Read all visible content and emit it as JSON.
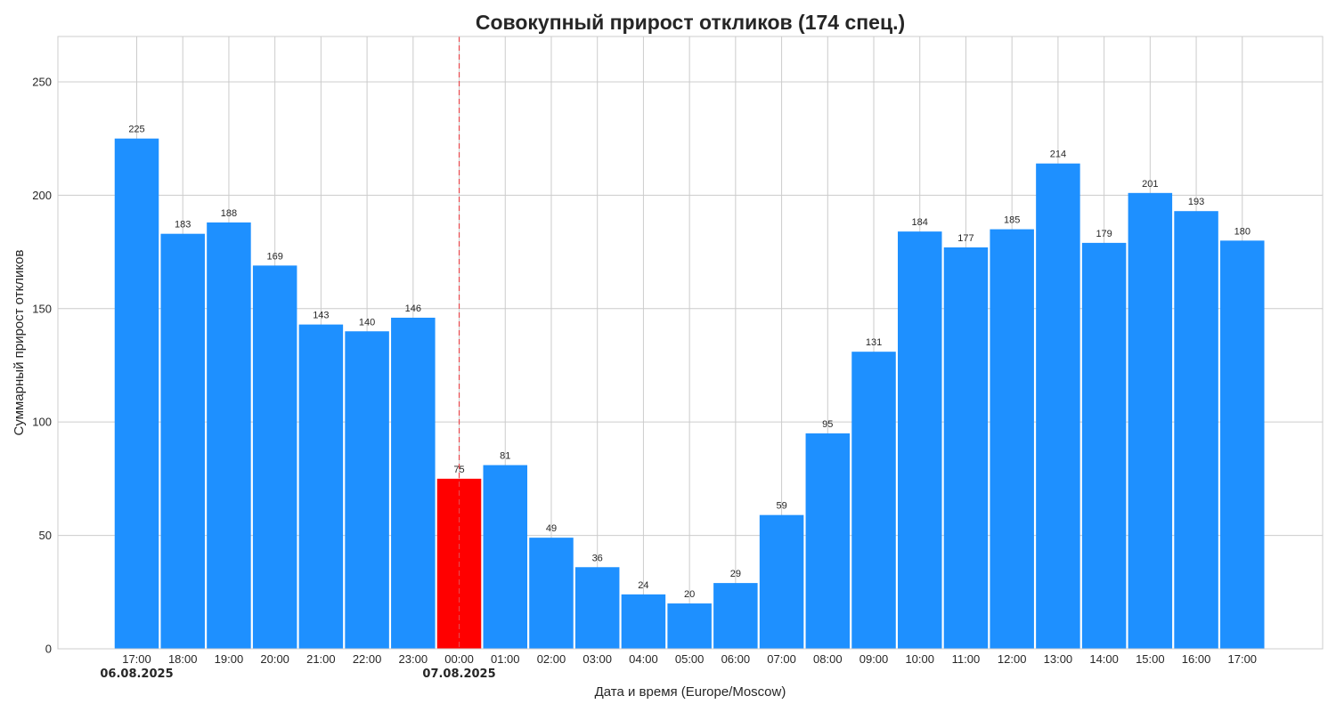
{
  "chart_data": {
    "type": "bar",
    "title": "Совокупный прирост откликов (174 спец.)",
    "xlabel": "Дата и время (Europe/Moscow)",
    "ylabel": "Суммарный прирост откликов",
    "ylim": [
      0,
      270
    ],
    "yticks": [
      0,
      50,
      100,
      150,
      200,
      250
    ],
    "grid": true,
    "categories": [
      "17:00",
      "18:00",
      "19:00",
      "20:00",
      "21:00",
      "22:00",
      "23:00",
      "00:00",
      "01:00",
      "02:00",
      "03:00",
      "04:00",
      "05:00",
      "06:00",
      "07:00",
      "08:00",
      "09:00",
      "10:00",
      "11:00",
      "12:00",
      "13:00",
      "14:00",
      "15:00",
      "16:00",
      "17:00"
    ],
    "values": [
      225,
      183,
      188,
      169,
      143,
      140,
      146,
      75,
      81,
      49,
      36,
      24,
      20,
      29,
      59,
      95,
      131,
      184,
      177,
      185,
      214,
      179,
      201,
      193,
      180
    ],
    "highlight_index": 7,
    "date_labels": [
      {
        "index": 0,
        "text": "06.08.2025"
      },
      {
        "index": 7,
        "text": "07.08.2025"
      }
    ],
    "colors": {
      "bar": "#1e90ff",
      "highlight": "#ff0000",
      "day_divider": "#e8474c",
      "grid": "#cccccc"
    }
  }
}
